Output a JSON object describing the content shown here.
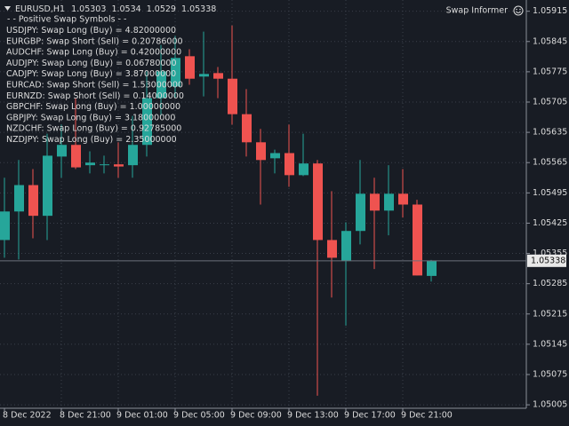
{
  "chart_data": {
    "type": "candlestick",
    "title": "EURUSD,H1",
    "overlay_title": "Swap Informer",
    "swap_list": {
      "heading": "- - Positive Swap Symbols - -",
      "rows": [
        "USDJPY:  Swap Long (Buy) = 4.82000000",
        "EURGBP:  Swap Short (Sell) = 0.20786000",
        "AUDCHF:  Swap Long (Buy) = 0.42000000",
        "AUDJPY:  Swap Long (Buy) = 0.06780000",
        "CADJPY:  Swap Long (Buy) = 3.87000000",
        "EURCAD:  Swap Short (Sell) = 1.53000000",
        "EURNZD:  Swap Short (Sell) = 0.14000000",
        "GBPCHF:  Swap Long (Buy) = 1.00000000",
        "GBPJPY:  Swap Long (Buy) = 3.18000000",
        "NZDCHF:  Swap Long (Buy) = 0.92785000",
        "NZDJPY:  Swap Long (Buy) = 2.35000000"
      ]
    },
    "categories": [
      "8 Dec 2022",
      null,
      null,
      null,
      "8 Dec 21:00",
      null,
      null,
      null,
      "9 Dec 01:00",
      null,
      null,
      null,
      "9 Dec 05:00",
      null,
      null,
      null,
      "9 Dec 09:00",
      null,
      null,
      null,
      "9 Dec 13:00",
      null,
      null,
      null,
      "9 Dec 17:00",
      null,
      null,
      null,
      "9 Dec 21:00",
      null,
      null
    ],
    "open": [
      1.05386,
      1.05452,
      1.05513,
      1.05442,
      1.05579,
      1.05606,
      1.05559,
      1.05559,
      1.05561,
      1.05559,
      1.05606,
      1.05714,
      1.05741,
      1.05811,
      1.05764,
      1.05772,
      1.05759,
      1.05677,
      1.05612,
      1.05575,
      1.05587,
      1.05536,
      1.05563,
      1.05386,
      1.05338,
      1.05407,
      1.05493,
      1.05454,
      1.05493,
      1.05468,
      1.05303
    ],
    "high": [
      1.0553,
      1.05571,
      1.0555,
      1.05632,
      1.05653,
      1.05714,
      1.05591,
      1.05581,
      1.05612,
      1.05673,
      1.05776,
      1.05837,
      1.05858,
      1.05827,
      1.05868,
      1.05786,
      1.05882,
      1.05735,
      1.05643,
      1.05595,
      1.05653,
      1.05632,
      1.05571,
      1.05499,
      1.05427,
      1.05571,
      1.0553,
      1.05559,
      1.0555,
      1.05479,
      1.0534
    ],
    "low": [
      1.05345,
      1.05341,
      1.0539,
      1.05386,
      1.0553,
      1.0555,
      1.0554,
      1.0554,
      1.0553,
      1.0553,
      1.05579,
      1.05673,
      1.05714,
      1.05745,
      1.05718,
      1.05714,
      1.05653,
      1.05579,
      1.05468,
      1.0554,
      1.05509,
      1.05534,
      1.05026,
      1.05253,
      1.05188,
      1.05376,
      1.05319,
      1.05397,
      1.05438,
      1.05304,
      1.0529
    ],
    "close": [
      1.05452,
      1.05513,
      1.05442,
      1.05581,
      1.05606,
      1.05554,
      1.05565,
      1.05561,
      1.05556,
      1.05606,
      1.05714,
      1.05776,
      1.05807,
      1.05759,
      1.0577,
      1.05759,
      1.05677,
      1.05612,
      1.05571,
      1.05587,
      1.05536,
      1.05563,
      1.05386,
      1.05345,
      1.05407,
      1.05493,
      1.05454,
      1.05493,
      1.05468,
      1.05304,
      1.05338
    ],
    "up_color": "#26a69a",
    "down_color": "#ef5350",
    "ylim": [
      1.04997,
      1.05941
    ],
    "yticks": [
      1.05005,
      1.05075,
      1.05145,
      1.05215,
      1.05285,
      1.05355,
      1.05425,
      1.05495,
      1.05565,
      1.05635,
      1.05705,
      1.05775,
      1.05845,
      1.05915
    ],
    "grid": true
  }
}
